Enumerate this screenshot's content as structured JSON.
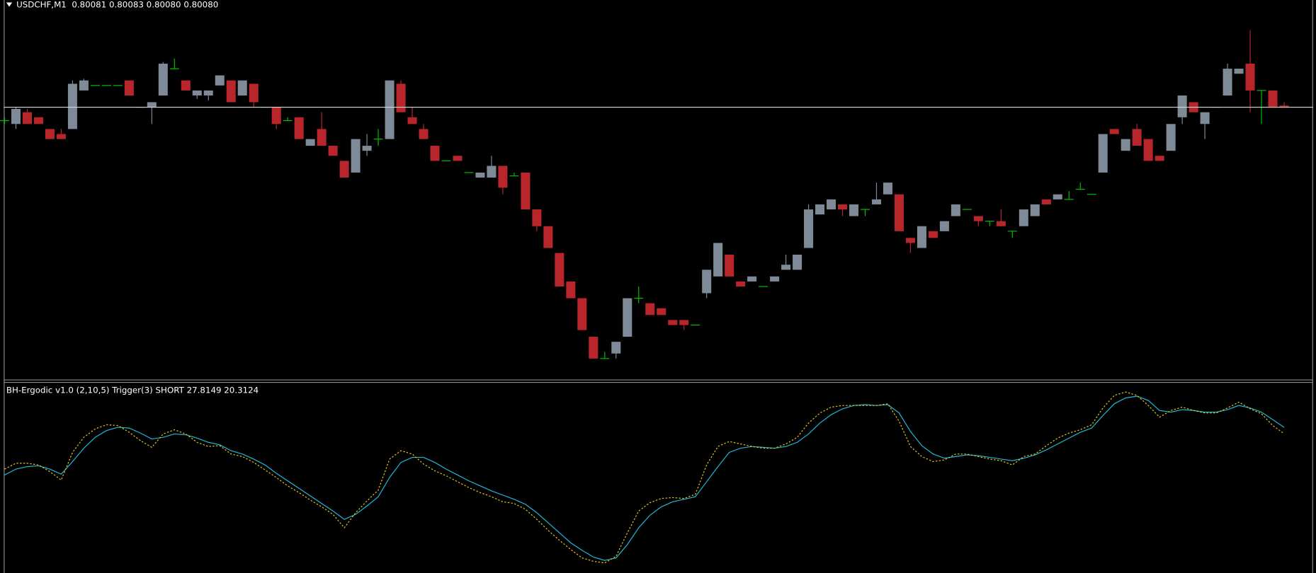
{
  "chart_data": [
    {
      "type": "candlestick",
      "title": "USDCHF,M1  0.80081 0.80083 0.80080 0.80080",
      "colors": {
        "up": "#7f8a99",
        "down": "#b8262c",
        "flat": "#00c000",
        "price_line": "#d8d8d8"
      },
      "ylim": [
        0.799175,
        0.80144
      ],
      "candles": [
        [
          0.80072,
          0.80074,
          0.8007,
          0.80072
        ],
        [
          0.8007,
          0.8008,
          0.80067,
          0.80079
        ],
        [
          0.80077,
          0.80079,
          0.8007,
          0.8007
        ],
        [
          0.80074,
          0.80074,
          0.8007,
          0.8007
        ],
        [
          0.80067,
          0.80067,
          0.80061,
          0.80061
        ],
        [
          0.80064,
          0.80067,
          0.80061,
          0.80061
        ],
        [
          0.80067,
          0.80096,
          0.80067,
          0.80094
        ],
        [
          0.8009,
          0.80097,
          0.8009,
          0.80096
        ],
        [
          0.80093,
          0.80093,
          0.80093,
          0.80093
        ],
        [
          0.80093,
          0.80093,
          0.80093,
          0.80093
        ],
        [
          0.80093,
          0.80093,
          0.80093,
          0.80093
        ],
        [
          0.80096,
          0.80096,
          0.80087,
          0.80087
        ],
        [
          0.8008,
          0.8008,
          0.8008,
          0.8008
        ],
        [
          0.8008,
          0.80083,
          0.8007,
          0.80083
        ],
        [
          0.80087,
          0.80107,
          0.80087,
          0.80106
        ],
        [
          0.80103,
          0.80109,
          0.80103,
          0.80103
        ],
        [
          0.80096,
          0.80096,
          0.8009,
          0.8009
        ],
        [
          0.80087,
          0.8009,
          0.80085,
          0.8009
        ],
        [
          0.80087,
          0.8009,
          0.80084,
          0.8009
        ],
        [
          0.80093,
          0.80099,
          0.80093,
          0.80099
        ],
        [
          0.80096,
          0.80096,
          0.80083,
          0.80083
        ],
        [
          0.80087,
          0.80096,
          0.80087,
          0.80096
        ],
        [
          0.80094,
          0.80094,
          0.8008,
          0.80083
        ],
        [
          0.8008,
          0.8008,
          0.8008,
          0.8008
        ],
        [
          0.8008,
          0.8008,
          0.80067,
          0.8007
        ],
        [
          0.80072,
          0.80074,
          0.80072,
          0.80072
        ],
        [
          0.80074,
          0.80074,
          0.80061,
          0.80061
        ],
        [
          0.80057,
          0.80061,
          0.80057,
          0.80061
        ],
        [
          0.80067,
          0.80077,
          0.80057,
          0.80057
        ],
        [
          0.80057,
          0.80057,
          0.80051,
          0.80051
        ],
        [
          0.80048,
          0.80048,
          0.80038,
          0.80038
        ],
        [
          0.80041,
          0.80061,
          0.80041,
          0.80061
        ],
        [
          0.80054,
          0.80064,
          0.80051,
          0.80057
        ],
        [
          0.80061,
          0.80067,
          0.80057,
          0.80061
        ],
        [
          0.80061,
          0.80096,
          0.80061,
          0.80096
        ],
        [
          0.80094,
          0.80096,
          0.80077,
          0.80077
        ],
        [
          0.80074,
          0.8008,
          0.8007,
          0.8007
        ],
        [
          0.80067,
          0.8007,
          0.80061,
          0.80061
        ],
        [
          0.80057,
          0.80057,
          0.80048,
          0.80048
        ],
        [
          0.80048,
          0.80048,
          0.80048,
          0.80048
        ],
        [
          0.80051,
          0.80051,
          0.80048,
          0.80048
        ],
        [
          0.80041,
          0.80041,
          0.80041,
          0.80041
        ],
        [
          0.80038,
          0.80041,
          0.80038,
          0.80041
        ],
        [
          0.80038,
          0.80051,
          0.80038,
          0.80045
        ],
        [
          0.80045,
          0.80045,
          0.80028,
          0.80032
        ],
        [
          0.80039,
          0.80041,
          0.80039,
          0.80039
        ],
        [
          0.80041,
          0.80041,
          0.80019,
          0.80019
        ],
        [
          0.80019,
          0.80019,
          0.80006,
          0.80009
        ],
        [
          0.80009,
          0.80009,
          0.79996,
          0.79996
        ],
        [
          0.79993,
          0.79993,
          0.79973,
          0.79973
        ],
        [
          0.79976,
          0.79976,
          0.79966,
          0.79966
        ],
        [
          0.79966,
          0.79966,
          0.79947,
          0.79947
        ],
        [
          0.79943,
          0.79943,
          0.7993,
          0.7993
        ],
        [
          0.7993,
          0.79934,
          0.7993,
          0.7993
        ],
        [
          0.79933,
          0.7994,
          0.7993,
          0.7994
        ],
        [
          0.79943,
          0.79966,
          0.79943,
          0.79966
        ],
        [
          0.79966,
          0.79973,
          0.79963,
          0.79966
        ],
        [
          0.79963,
          0.79963,
          0.79956,
          0.79956
        ],
        [
          0.7996,
          0.7996,
          0.79956,
          0.79956
        ],
        [
          0.79953,
          0.79953,
          0.7995,
          0.7995
        ],
        [
          0.79953,
          0.79953,
          0.79947,
          0.7995
        ],
        [
          0.7995,
          0.7995,
          0.7995,
          0.7995
        ],
        [
          0.79969,
          0.79983,
          0.79966,
          0.79983
        ],
        [
          0.79979,
          0.79999,
          0.79979,
          0.79999
        ],
        [
          0.79992,
          0.79992,
          0.79979,
          0.79979
        ],
        [
          0.79976,
          0.79976,
          0.79973,
          0.79973
        ],
        [
          0.79976,
          0.79979,
          0.79976,
          0.79979
        ],
        [
          0.79973,
          0.79973,
          0.79973,
          0.79973
        ],
        [
          0.79976,
          0.79979,
          0.79976,
          0.79979
        ],
        [
          0.79983,
          0.79992,
          0.79983,
          0.79986
        ],
        [
          0.79983,
          0.79992,
          0.79983,
          0.79992
        ],
        [
          0.79996,
          0.80022,
          0.79996,
          0.80019
        ],
        [
          0.80016,
          0.80022,
          0.80016,
          0.80022
        ],
        [
          0.80019,
          0.80025,
          0.80019,
          0.80025
        ],
        [
          0.80022,
          0.80022,
          0.80015,
          0.80019
        ],
        [
          0.80015,
          0.80022,
          0.80015,
          0.80022
        ],
        [
          0.80019,
          0.80019,
          0.80015,
          0.80019
        ],
        [
          0.80022,
          0.80035,
          0.80022,
          0.80025
        ],
        [
          0.80028,
          0.80035,
          0.80028,
          0.80035
        ],
        [
          0.80028,
          0.80028,
          0.80006,
          0.80006
        ],
        [
          0.80002,
          0.80002,
          0.79993,
          0.79999
        ],
        [
          0.79996,
          0.80009,
          0.79996,
          0.80009
        ],
        [
          0.80006,
          0.80006,
          0.80002,
          0.80002
        ],
        [
          0.80006,
          0.80012,
          0.80006,
          0.80012
        ],
        [
          0.80015,
          0.80022,
          0.80015,
          0.80022
        ],
        [
          0.80019,
          0.80019,
          0.80019,
          0.80019
        ],
        [
          0.80015,
          0.80015,
          0.80009,
          0.80012
        ],
        [
          0.80012,
          0.80012,
          0.80009,
          0.80012
        ],
        [
          0.80012,
          0.80019,
          0.80009,
          0.80009
        ],
        [
          0.80006,
          0.80006,
          0.80002,
          0.80006
        ],
        [
          0.80009,
          0.80019,
          0.80009,
          0.80019
        ],
        [
          0.80015,
          0.80022,
          0.80015,
          0.80022
        ],
        [
          0.80025,
          0.80025,
          0.80022,
          0.80022
        ],
        [
          0.80025,
          0.80028,
          0.80025,
          0.80028
        ],
        [
          0.80025,
          0.8003,
          0.80025,
          0.80025
        ],
        [
          0.80031,
          0.80035,
          0.80031,
          0.80031
        ],
        [
          0.80028,
          0.80028,
          0.80028,
          0.80028
        ],
        [
          0.80041,
          0.80064,
          0.80041,
          0.80064
        ],
        [
          0.80067,
          0.80067,
          0.80064,
          0.80064
        ],
        [
          0.80054,
          0.80061,
          0.80054,
          0.80061
        ],
        [
          0.80067,
          0.8007,
          0.80057,
          0.80057
        ],
        [
          0.80061,
          0.80061,
          0.80048,
          0.80048
        ],
        [
          0.80051,
          0.80051,
          0.80048,
          0.80048
        ],
        [
          0.80054,
          0.8007,
          0.80054,
          0.8007
        ],
        [
          0.80074,
          0.80087,
          0.8007,
          0.80087
        ],
        [
          0.80083,
          0.80083,
          0.80077,
          0.80077
        ],
        [
          0.8007,
          0.80077,
          0.80061,
          0.80077
        ],
        [
          0.8008,
          0.8008,
          0.8008,
          0.8008
        ],
        [
          0.80087,
          0.80106,
          0.80087,
          0.80103
        ],
        [
          0.801,
          0.80103,
          0.801,
          0.80103
        ],
        [
          0.80106,
          0.80126,
          0.80077,
          0.8009
        ],
        [
          0.8009,
          0.8009,
          0.8007,
          0.8009
        ],
        [
          0.8009,
          0.8009,
          0.8008,
          0.8008
        ],
        [
          0.80081,
          0.80083,
          0.8008,
          0.8008
        ]
      ]
    },
    {
      "type": "line",
      "title": "BH-Ergodic v1.0 (2,10,5) Trigger(3) SHORT 27.8149 20.3124",
      "ylim": [
        -146,
        81
      ],
      "series": [
        {
          "color": "#1fb8d8",
          "style": "solid",
          "values": [
            -29,
            -22,
            -19,
            -18,
            -22,
            -28,
            -13,
            3,
            16,
            24,
            28,
            27,
            21,
            14,
            16,
            20,
            19,
            15,
            10,
            7,
            0,
            -4,
            -10,
            -17,
            -27,
            -36,
            -45,
            -54,
            -63,
            -72,
            -82,
            -76,
            -66,
            -55,
            -32,
            -14,
            -8,
            -8,
            -14,
            -22,
            -29,
            -36,
            -42,
            -48,
            -53,
            -58,
            -64,
            -74,
            -86,
            -98,
            -110,
            -119,
            -127,
            -131,
            -128,
            -112,
            -92,
            -77,
            -67,
            -61,
            -58,
            -55,
            -37,
            -19,
            -2,
            3,
            5,
            4,
            3,
            5,
            10,
            20,
            33,
            43,
            50,
            54,
            55,
            54,
            55,
            45,
            23,
            6,
            -4,
            -9,
            -7,
            -5,
            -6,
            -8,
            -10,
            -12,
            -9,
            -5,
            1,
            8,
            15,
            22,
            27,
            42,
            56,
            63,
            65,
            60,
            48,
            46,
            49,
            48,
            46,
            46,
            49,
            54,
            51,
            46,
            37,
            27.8149
          ]
        },
        {
          "color": "#e8c81a",
          "style": "dotted",
          "values": [
            -22,
            -15,
            -15,
            -17,
            -25,
            -35,
            -2,
            16,
            26,
            31,
            30,
            22,
            12,
            4,
            20,
            25,
            20,
            10,
            5,
            6,
            -4,
            -7,
            -14,
            -23,
            -32,
            -42,
            -50,
            -59,
            -67,
            -76,
            -92,
            -74,
            -60,
            -47,
            -10,
            0,
            -4,
            -16,
            -24,
            -30,
            -37,
            -44,
            -50,
            -55,
            -61,
            -63,
            -70,
            -82,
            -95,
            -107,
            -118,
            -128,
            -132,
            -134,
            -126,
            -98,
            -72,
            -62,
            -57,
            -56,
            -57,
            -52,
            -17,
            5,
            11,
            8,
            5,
            3,
            3,
            8,
            16,
            33,
            45,
            52,
            54,
            54,
            54,
            54,
            56,
            35,
            5,
            -7,
            -13,
            -11,
            -4,
            -4,
            -7,
            -10,
            -12,
            -17,
            -7,
            -4,
            6,
            15,
            21,
            25,
            31,
            51,
            66,
            70,
            66,
            54,
            40,
            48,
            52,
            48,
            45,
            45,
            51,
            58,
            50,
            44,
            30,
            20.3124
          ]
        }
      ]
    }
  ]
}
